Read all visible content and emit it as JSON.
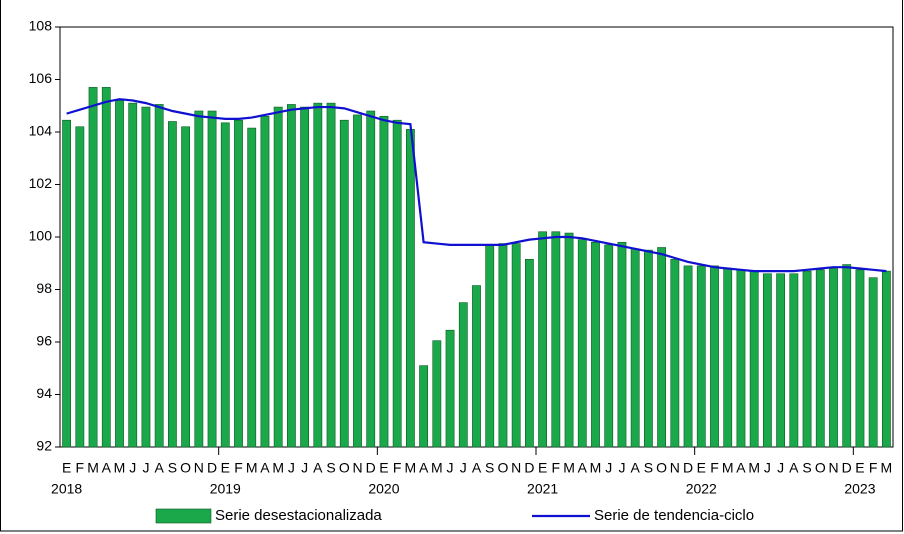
{
  "chart_data": {
    "type": "bar_line",
    "categories": [
      "E",
      "F",
      "M",
      "A",
      "M",
      "J",
      "J",
      "A",
      "S",
      "O",
      "N",
      "D",
      "E",
      "F",
      "M",
      "A",
      "M",
      "J",
      "J",
      "A",
      "S",
      "O",
      "N",
      "D",
      "E",
      "F",
      "M",
      "A",
      "M",
      "J",
      "J",
      "A",
      "S",
      "O",
      "N",
      "D",
      "E",
      "F",
      "M",
      "A",
      "M",
      "J",
      "J",
      "A",
      "S",
      "O",
      "N",
      "D",
      "E",
      "F",
      "M",
      "A",
      "M",
      "J",
      "J",
      "A",
      "S",
      "O",
      "N",
      "D",
      "E",
      "F",
      "M"
    ],
    "year_labels": [
      "2018",
      "2019",
      "2020",
      "2021",
      "2022",
      "2023"
    ],
    "series": [
      {
        "name": "Serie desestacionalizada",
        "kind": "bar",
        "color": "#1aa84a",
        "values": [
          104.45,
          104.2,
          105.7,
          105.7,
          105.2,
          105.1,
          104.95,
          105.05,
          104.4,
          104.2,
          104.8,
          104.8,
          104.35,
          104.45,
          104.15,
          104.6,
          104.95,
          105.05,
          104.95,
          105.1,
          105.1,
          104.45,
          104.65,
          104.8,
          104.6,
          104.45,
          104.1,
          95.1,
          96.05,
          96.45,
          97.5,
          98.15,
          99.7,
          99.75,
          99.75,
          99.15,
          100.2,
          100.2,
          100.15,
          99.9,
          99.8,
          99.7,
          99.8,
          99.55,
          99.5,
          99.6,
          99.15,
          98.9,
          98.9,
          98.9,
          98.8,
          98.75,
          98.7,
          98.6,
          98.6,
          98.6,
          98.7,
          98.75,
          98.8,
          98.95,
          98.75,
          98.45,
          98.7
        ]
      },
      {
        "name": "Serie de tendencia-ciclo",
        "kind": "line",
        "color": "#1010d0",
        "values": [
          104.7,
          104.85,
          105.0,
          105.15,
          105.25,
          105.2,
          105.1,
          104.95,
          104.8,
          104.7,
          104.6,
          104.55,
          104.5,
          104.5,
          104.55,
          104.65,
          104.75,
          104.85,
          104.9,
          104.95,
          104.95,
          104.9,
          104.75,
          104.6,
          104.45,
          104.35,
          104.3,
          99.8,
          99.75,
          99.7,
          99.7,
          99.7,
          99.7,
          99.7,
          99.8,
          99.9,
          99.95,
          100.0,
          100.0,
          99.95,
          99.85,
          99.75,
          99.65,
          99.55,
          99.45,
          99.35,
          99.2,
          99.05,
          98.95,
          98.85,
          98.8,
          98.75,
          98.7,
          98.7,
          98.7,
          98.7,
          98.75,
          98.8,
          98.85,
          98.85,
          98.8,
          98.75,
          98.7
        ]
      }
    ],
    "ylim": [
      92,
      108
    ],
    "yticks": [
      92,
      94,
      96,
      98,
      100,
      102,
      104,
      106,
      108
    ],
    "grid": false,
    "legend": "bottom"
  }
}
